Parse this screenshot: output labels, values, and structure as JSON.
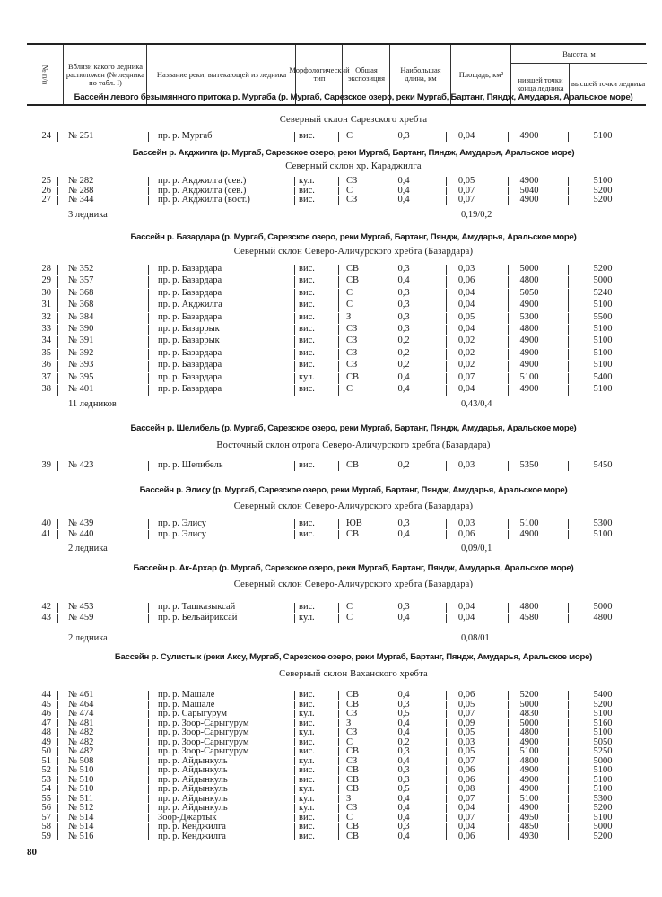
{
  "header": {
    "col_num": "№ п/п",
    "col_near_glacier": "Вблизи какого ледника расположен (№ ледника по табл. I)",
    "col_river": "Название реки, вытекающей из ледника",
    "col_morph": "Морфологический тип",
    "col_exposure": "Общая экспозиция",
    "col_length": "Наибольшая длина, км",
    "col_area": "Площадь, км²",
    "col_height": "Высота, м",
    "col_height_low": "низшей точки конца ледника",
    "col_height_high": "высшей точки ледника"
  },
  "sections": [
    {
      "title": "Бассейн левого безымянного притока р. Мургаба (р. Мургаб, Сарезское озеро, реки Мургаб, Бартанг, Пяндж, Амударья, Аральское море)",
      "slope": "Северный склон Сарезского хребта",
      "rows": [
        [
          "24",
          "№ 251",
          "пр. р. Мургаб",
          "вис.",
          "С",
          "0,3",
          "0,04",
          "4900",
          "5100"
        ]
      ]
    },
    {
      "title": "Бассейн р. Акджилга (р. Мургаб, Сарезское озеро, реки Мургаб, Бартанг, Пяндж, Амударья, Аральское море)",
      "slope": "Северный склон хр. Караджилга",
      "rows": [
        [
          "25",
          "№ 282",
          "пр. р. Акджилга (сев.)",
          "кул.",
          "СЗ",
          "0,4",
          "0,05",
          "4900",
          "5100"
        ],
        [
          "26",
          "№ 288",
          "пр. р. Акджилга (сев.)",
          "вис.",
          "С",
          "0,4",
          "0,07",
          "5040",
          "5200"
        ],
        [
          "27",
          "№ 344",
          "пр. р. Акджилга (вост.)",
          "вис.",
          "СЗ",
          "0,4",
          "0,07",
          "4900",
          "5200"
        ]
      ],
      "total_label": "3 ледника",
      "total_area": "0,19/0,2"
    },
    {
      "title": "Бассейн р. Базардара (р. Мургаб, Сарезское озеро, реки Мургаб, Бартанг, Пяндж, Амударья, Аральское море)",
      "slope": "Северный склон Северо-Аличурского хребта (Базардара)",
      "rows": [
        [
          "28",
          "№ 352",
          "пр. р. Базардара",
          "вис.",
          "СВ",
          "0,3",
          "0,03",
          "5000",
          "5200"
        ],
        [
          "29",
          "№ 357",
          "пр. р. Базардара",
          "вис.",
          "СВ",
          "0,4",
          "0,06",
          "4800",
          "5000"
        ],
        [
          "30",
          "№ 368",
          "пр. р. Базардара",
          "вис.",
          "С",
          "0,3",
          "0,04",
          "5050",
          "5240"
        ],
        [
          "31",
          "№ 368",
          "пр. р. Акджилга",
          "вис.",
          "С",
          "0,3",
          "0,04",
          "4900",
          "5100"
        ],
        [
          "32",
          "№ 384",
          "пр. р. Базардара",
          "вис.",
          "З",
          "0,3",
          "0,05",
          "5300",
          "5500"
        ],
        [
          "33",
          "№ 390",
          "пр. р. Базаррык",
          "вис.",
          "СЗ",
          "0,3",
          "0,04",
          "4800",
          "5100"
        ],
        [
          "34",
          "№ 391",
          "пр. р. Базаррык",
          "вис.",
          "СЗ",
          "0,2",
          "0,02",
          "4900",
          "5100"
        ],
        [
          "35",
          "№ 392",
          "пр. р. Базардара",
          "вис.",
          "СЗ",
          "0,2",
          "0,02",
          "4900",
          "5100"
        ],
        [
          "36",
          "№ 393",
          "пр. р. Базардара",
          "вис.",
          "СЗ",
          "0,2",
          "0,02",
          "4900",
          "5100"
        ],
        [
          "37",
          "№ 395",
          "пр. р. Базардара",
          "кул.",
          "СВ",
          "0,4",
          "0,07",
          "5100",
          "5400"
        ],
        [
          "38",
          "№ 401",
          "пр. р. Базардара",
          "вис.",
          "С",
          "0,4",
          "0,04",
          "4900",
          "5100"
        ]
      ],
      "total_label": "11 ледников",
      "total_area": "0,43/0,4"
    },
    {
      "title": "Бассейн р. Шелибель (р. Мургаб, Сарезское озеро, реки Мургаб, Бартанг, Пяндж, Амударья, Аральское море)",
      "slope": "Восточный склон отрога Северо-Аличурского хребта (Базардара)",
      "rows": [
        [
          "39",
          "№ 423",
          "пр. р. Шелибель",
          "вис.",
          "СВ",
          "0,2",
          "0,03",
          "5350",
          "5450"
        ]
      ]
    },
    {
      "title": "Бассейн р. Элису (р. Мургаб, Сарезское озеро, реки Мургаб, Бартанг, Пяндж, Амударья, Аральское море)",
      "slope": "Северный склон Северо-Аличурского хребта (Базардара)",
      "rows": [
        [
          "40",
          "№ 439",
          "пр. р. Элису",
          "вис.",
          "ЮВ",
          "0,3",
          "0,03",
          "5100",
          "5300"
        ],
        [
          "41",
          "№ 440",
          "пр. р. Элису",
          "вис.",
          "СВ",
          "0,4",
          "0,06",
          "4900",
          "5100"
        ]
      ],
      "total_label": "2 ледника",
      "total_area": "0,09/0,1"
    },
    {
      "title": "Бассейн р. Ак-Архар (р. Мургаб, Сарезское озеро, реки Мургаб, Бартанг, Пяндж, Амударья, Аральское море)",
      "slope": "Северный склон Северо-Аличурского хребта (Базардара)",
      "rows": [
        [
          "42",
          "№ 453",
          "пр. р. Ташказыксай",
          "вис.",
          "С",
          "0,3",
          "0,04",
          "4800",
          "5000"
        ],
        [
          "43",
          "№ 459",
          "пр. р. Бельайриксай",
          "кул.",
          "С",
          "0,4",
          "0,04",
          "4580",
          "4800"
        ]
      ],
      "total_label": "2 ледника",
      "total_area": "0,08/01"
    },
    {
      "title": "Бассейн р. Сулистык (реки Аксу, Мургаб, Сарезское озеро, реки Мургаб, Бартанг, Пяндж, Амударья, Аральское море)",
      "slope": "Северный склон Ваханского хребта",
      "rows": [
        [
          "44",
          "№ 461",
          "пр. р. Машале",
          "вис.",
          "СВ",
          "0,4",
          "0,06",
          "5200",
          "5400"
        ],
        [
          "45",
          "№ 464",
          "пр. р. Машале",
          "вис.",
          "СВ",
          "0,3",
          "0,05",
          "5000",
          "5200"
        ],
        [
          "46",
          "№ 474",
          "пр. р. Сарыгурум",
          "кул.",
          "СЗ",
          "0,5",
          "0,07",
          "4830",
          "5100"
        ],
        [
          "47",
          "№ 481",
          "пр. р. Зоор-Сарыгурум",
          "вис.",
          "З",
          "0,4",
          "0,09",
          "5000",
          "5160"
        ],
        [
          "48",
          "№ 482",
          "пр. р. Зоор-Сарыгурум",
          "кул.",
          "СЗ",
          "0,4",
          "0,05",
          "4800",
          "5100"
        ],
        [
          "49",
          "№ 482",
          "пр. р. Зоор-Сарыгурум",
          "вис.",
          "С",
          "0,2",
          "0,03",
          "4900",
          "5050"
        ],
        [
          "50",
          "№ 482",
          "пр. р. Зоор-Сарыгурум",
          "вис.",
          "СВ",
          "0,3",
          "0,05",
          "5100",
          "5250"
        ],
        [
          "51",
          "№ 508",
          "пр. р. Айдынкуль",
          "кул.",
          "СЗ",
          "0,4",
          "0,07",
          "4800",
          "5000"
        ],
        [
          "52",
          "№ 510",
          "пр. р. Айдынкуль",
          "вис.",
          "СВ",
          "0,3",
          "0,06",
          "4900",
          "5100"
        ],
        [
          "53",
          "№ 510",
          "пр. р. Айдынкуль",
          "вис.",
          "СВ",
          "0,3",
          "0,06",
          "4900",
          "5100"
        ],
        [
          "54",
          "№ 510",
          "пр. р. Айдынкуль",
          "кул.",
          "СВ",
          "0,5",
          "0,08",
          "4900",
          "5100"
        ],
        [
          "55",
          "№ 511",
          "пр. р. Айдынкуль",
          "кул.",
          "З",
          "0,4",
          "0,07",
          "5100",
          "5300"
        ],
        [
          "56",
          "№ 512",
          "пр. р. Айдынкуль",
          "кул.",
          "СЗ",
          "0,4",
          "0,04",
          "4900",
          "5200"
        ],
        [
          "57",
          "№ 514",
          "Зоор-Джартык",
          "вис.",
          "С",
          "0,4",
          "0,07",
          "4950",
          "5100"
        ],
        [
          "58",
          "№ 514",
          "пр. р. Кенджилга",
          "вис.",
          "СВ",
          "0,3",
          "0,04",
          "4850",
          "5000"
        ],
        [
          "59",
          "№ 516",
          "пр. р. Кенджилга",
          "вис.",
          "СВ",
          "0,4",
          "0,06",
          "4930",
          "5200"
        ]
      ]
    }
  ],
  "page_number": "80"
}
